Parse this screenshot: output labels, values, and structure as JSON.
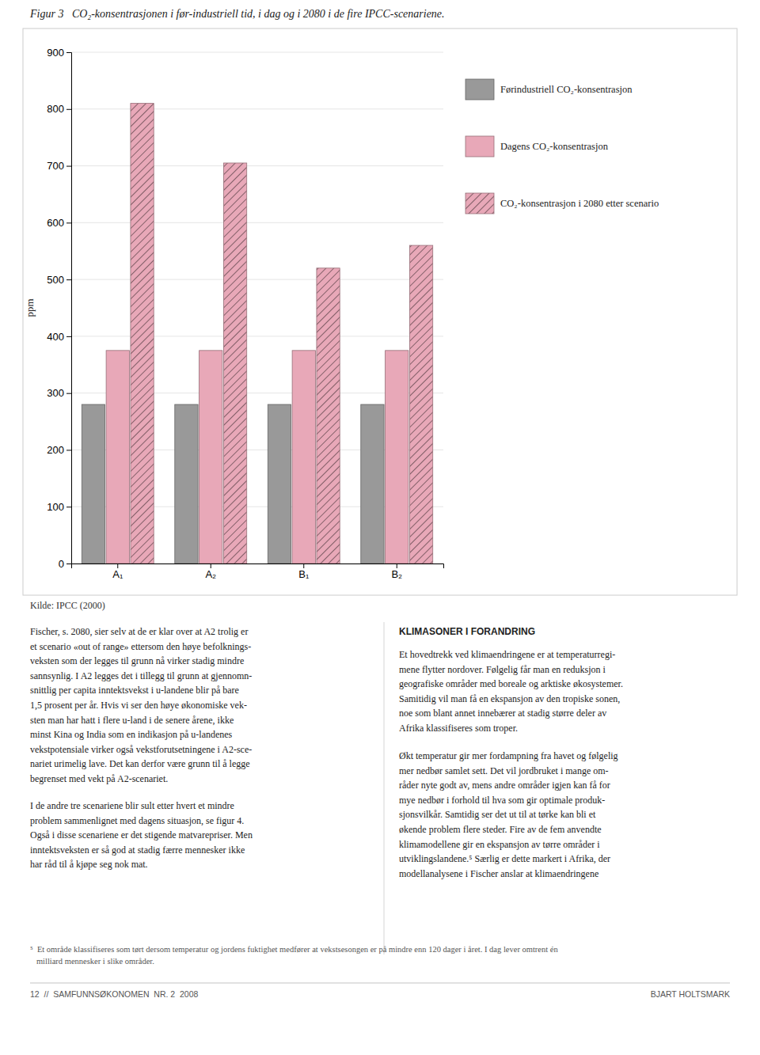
{
  "chart_data": {
    "type": "bar",
    "title": "Figur 3   CO₂-konsentrasjonen i før-industriell tid, i dag og i 2080 i de fire IPCC-scenariene.",
    "y_label": "ppm",
    "categories": [
      "A₁",
      "A₂",
      "B₁",
      "B₂"
    ],
    "series": [
      {
        "name": "Førindustriell CO₂-konsentrasjon",
        "color": "#999999",
        "values": [
          280,
          280,
          280,
          280
        ]
      },
      {
        "name": "Dagens CO₂-konsentrasjon",
        "color": "#e8a8b8",
        "values": [
          375,
          375,
          375,
          375
        ]
      },
      {
        "name": "CO₂-konsentrasjon i 2080 etter scenario",
        "color": "#e8a8b8",
        "values": [
          810,
          705,
          520,
          560
        ]
      }
    ],
    "ylim": [
      0,
      900
    ],
    "yticks": [
      0,
      100,
      200,
      300,
      400,
      500,
      600,
      700,
      800,
      900
    ],
    "grid": true,
    "legend": "right",
    "source": "Kilde: IPCC (2000)"
  },
  "body_left": "Fischer, s. 2080, sier selv at de er klar over at A2 trolig er\net scenario «out of range» ettersom den høye befolknings-\nveksten som der legges til grunn nå virker stadig mindre\nsannsynlig. I A2 legges det i tillegg til grunn at gjennomn-\nsnittlig per capita inntektsvekst i u-landene blir på bare\n1,5 prosent per år. Hvis vi ser den høye økonomiske vek-\nsten man har hatt i flere u-land i de senere årene, ikke\nminst Kina og India som en indikasjon på u-landenes\nvekstpotensiale virker også vekstforutsetningene i A2-sce-\nnariet urimelig lave. Det kan derfor være grunn til å legge\nbegrenset med vekt på A2-scenariet.",
  "body_left_2": "I de andre tre scenariene blir sult etter hvert et mindre\nproblem sammenlignet med dagens situasjon, se figur 4.\nOgså i disse scenariene er det stigende matvarepriser. Men\ninntektsveksten er så god at stadig færre mennesker ikke\nhar råd til å kjøpe seg nok mat.",
  "section_header": "KLIMASONER I FORANDRING",
  "body_right": "Et hovedtrekk ved klimaendringene er at temperaturregi-\nmene flytter nordover. Følgelig får man en reduksjon i\ngeografiske områder med boreale og arktiske økosystemer.\nSamitidig vil man få en ekspansjon av den tropiske sonen,\nnoe som blant annet innebærer at stadig større deler av\nAfrika klassifiseres som troper.",
  "body_right_2": "Økt temperatur gir mer fordampning fra havet og følgelig\nmer nedbør samlet sett. Det vil jordbruket i mange om-\nråder nyte godt av, mens andre områder igjen kan få for\nmye nedbør i forhold til hva som gir optimale produk-\nsjonsvilkår. Samtidig ser det ut til at tørke kan bli et\nøkende problem flere steder. Fire av de fem anvendte\nklimamodellene gir en ekspansjon av tørre områder i\nutviklingslandene.⁵ Særlig er dette markert i Afrika, der\nmodellanalysene i Fischer anslar at klimaendringene",
  "footnote": "⁵  Et område klassifiseres som tørt dersom temperatur og jordens fuktighet medfører at vekstsesongen er på mindre enn 120 dager i året. I dag lever omtrent én\n   milliard mennesker i slike områder.",
  "footer_left": "12  //  SAMFUNNSØKONOMEN  NR. 2  2008",
  "footer_right": "BJART HOLTSMARK"
}
